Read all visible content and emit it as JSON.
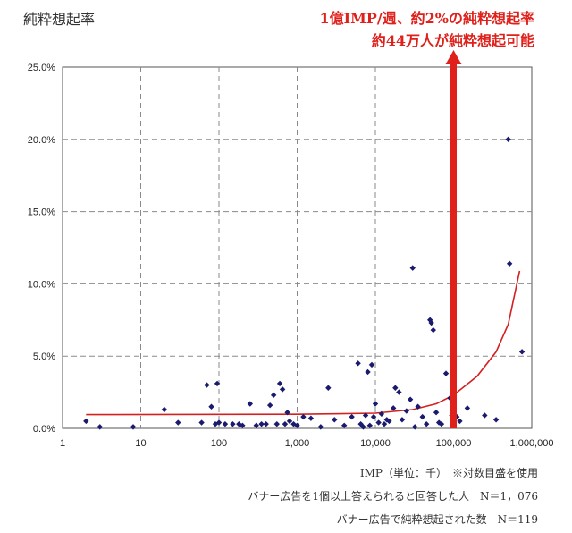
{
  "chart_data": {
    "type": "scatter",
    "ylabel": "純粋想起率",
    "x_scale": "log",
    "xlim": [
      1,
      1000000
    ],
    "ylim": [
      0,
      25
    ],
    "x_ticks": [
      "1",
      "10",
      "100",
      "1,000",
      "10,000",
      "100,000",
      "1,000,000"
    ],
    "y_ticks": [
      "0.0%",
      "5.0%",
      "10.0%",
      "15.0%",
      "20.0%",
      "25.0%"
    ],
    "grid": true,
    "annotation": [
      "1億IMP/週、約2%の純粋想起率",
      "約44万人が純粋想起可能"
    ],
    "arrow_x": 100000,
    "xlabel": "IMP（単位：千）　※対数目盛を使用",
    "notes": [
      "バナー広告を1個以上答えられると回答した人　N＝1，076",
      "バナー広告で純粋想起された数　N＝119"
    ],
    "points": [
      [
        2,
        0.5
      ],
      [
        3,
        0.1
      ],
      [
        8,
        0.1
      ],
      [
        20,
        1.3
      ],
      [
        30,
        0.4
      ],
      [
        60,
        0.4
      ],
      [
        70,
        3.0
      ],
      [
        80,
        1.5
      ],
      [
        90,
        0.3
      ],
      [
        95,
        3.1
      ],
      [
        100,
        0.4
      ],
      [
        120,
        0.3
      ],
      [
        150,
        0.3
      ],
      [
        180,
        0.3
      ],
      [
        200,
        0.2
      ],
      [
        250,
        1.7
      ],
      [
        300,
        0.2
      ],
      [
        350,
        0.3
      ],
      [
        400,
        0.3
      ],
      [
        450,
        1.6
      ],
      [
        500,
        2.3
      ],
      [
        550,
        0.3
      ],
      [
        600,
        3.1
      ],
      [
        650,
        2.7
      ],
      [
        700,
        0.3
      ],
      [
        750,
        1.1
      ],
      [
        800,
        0.5
      ],
      [
        900,
        0.3
      ],
      [
        1000,
        0.2
      ],
      [
        1200,
        0.8
      ],
      [
        1500,
        0.7
      ],
      [
        2000,
        0.1
      ],
      [
        2500,
        2.8
      ],
      [
        3000,
        0.6
      ],
      [
        4000,
        0.2
      ],
      [
        5000,
        0.8
      ],
      [
        6000,
        4.5
      ],
      [
        6500,
        0.3
      ],
      [
        7000,
        0.1
      ],
      [
        7500,
        0.9
      ],
      [
        8000,
        3.9
      ],
      [
        8500,
        0.2
      ],
      [
        9000,
        4.4
      ],
      [
        9500,
        0.8
      ],
      [
        10000,
        1.7
      ],
      [
        11000,
        0.4
      ],
      [
        12000,
        1.0
      ],
      [
        13000,
        0.3
      ],
      [
        14000,
        0.6
      ],
      [
        15000,
        0.5
      ],
      [
        17000,
        1.4
      ],
      [
        18000,
        2.8
      ],
      [
        20000,
        2.5
      ],
      [
        22000,
        0.6
      ],
      [
        25000,
        1.2
      ],
      [
        28000,
        2.0
      ],
      [
        30000,
        11.1
      ],
      [
        32000,
        0.1
      ],
      [
        35000,
        1.5
      ],
      [
        40000,
        0.8
      ],
      [
        45000,
        0.3
      ],
      [
        50000,
        7.5
      ],
      [
        52000,
        7.3
      ],
      [
        55000,
        6.8
      ],
      [
        60000,
        1.1
      ],
      [
        65000,
        0.4
      ],
      [
        70000,
        0.3
      ],
      [
        80000,
        3.8
      ],
      [
        90000,
        2.1
      ],
      [
        95000,
        0.9
      ],
      [
        110000,
        0.8
      ],
      [
        120000,
        0.5
      ],
      [
        150000,
        1.4
      ],
      [
        250000,
        0.9
      ],
      [
        350000,
        0.6
      ],
      [
        500000,
        20.0
      ],
      [
        520000,
        11.4
      ],
      [
        750000,
        5.3
      ]
    ],
    "trend": [
      [
        2,
        0.95
      ],
      [
        1000,
        0.98
      ],
      [
        10000,
        1.05
      ],
      [
        30000,
        1.3
      ],
      [
        60000,
        1.7
      ],
      [
        100000,
        2.3
      ],
      [
        200000,
        3.6
      ],
      [
        350000,
        5.3
      ],
      [
        500000,
        7.2
      ],
      [
        700000,
        10.9
      ]
    ],
    "colors": {
      "points": "#1a1a6e",
      "trend": "#d42020",
      "arrow": "#e0201a",
      "grid": "#8a8a8a"
    }
  }
}
